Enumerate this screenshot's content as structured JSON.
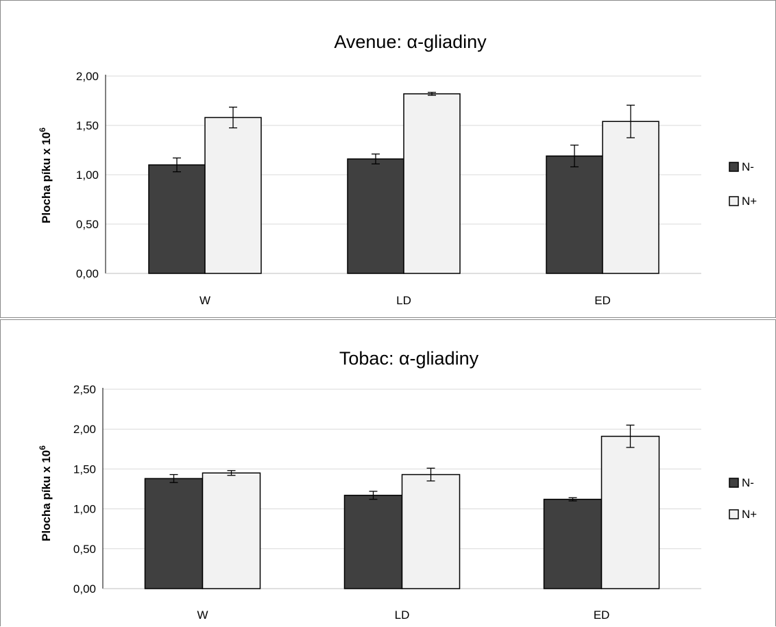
{
  "chart_data": [
    {
      "type": "bar",
      "title": "Avenue: α-gliadiny",
      "ylabel_main": "Plocha píku",
      "ylabel_mult": "x 10",
      "ylabel_exp": "6",
      "xlabel": "",
      "categories": [
        "W",
        "LD",
        "ED"
      ],
      "ylim": [
        0,
        2.0
      ],
      "yticks": [
        "0,00",
        "0,50",
        "1,00",
        "1,50",
        "2,00"
      ],
      "grid": true,
      "legend_position": "right",
      "series": [
        {
          "name": "N-",
          "color": "#404040",
          "values": [
            1.1,
            1.16,
            1.19
          ],
          "errors": [
            0.07,
            0.05,
            0.11
          ]
        },
        {
          "name": "N+",
          "color": "#f2f2f2",
          "values": [
            1.58,
            1.82,
            1.54
          ],
          "errors": [
            0.105,
            0.015,
            0.165
          ]
        }
      ]
    },
    {
      "type": "bar",
      "title": "Tobac: α-gliadiny",
      "ylabel_main": "Plocha píku",
      "ylabel_mult": "x 10",
      "ylabel_exp": "6",
      "xlabel": "",
      "categories": [
        "W",
        "LD",
        "ED"
      ],
      "ylim": [
        0,
        2.5
      ],
      "yticks": [
        "0,00",
        "0,50",
        "1,00",
        "1,50",
        "2,00",
        "2,50"
      ],
      "grid": true,
      "legend_position": "right",
      "series": [
        {
          "name": "N-",
          "color": "#404040",
          "values": [
            1.38,
            1.17,
            1.12
          ],
          "errors": [
            0.05,
            0.05,
            0.02
          ]
        },
        {
          "name": "N+",
          "color": "#f2f2f2",
          "values": [
            1.45,
            1.43,
            1.91
          ],
          "errors": [
            0.03,
            0.08,
            0.14
          ]
        }
      ]
    }
  ]
}
